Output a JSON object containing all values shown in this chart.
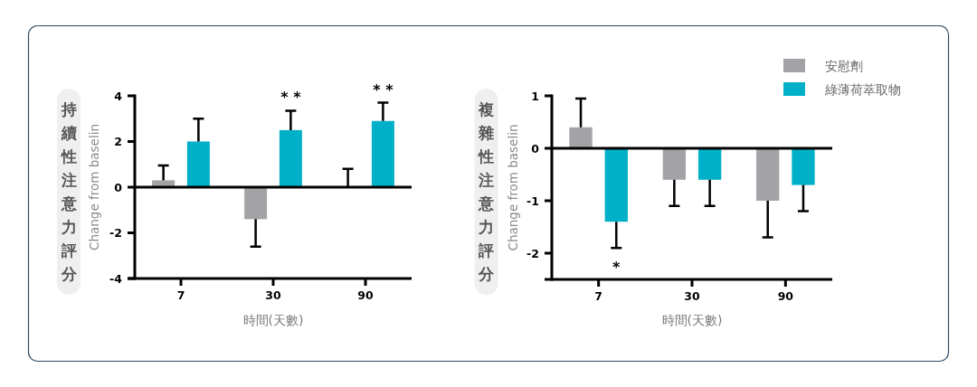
{
  "chart_data": [
    {
      "type": "bar",
      "title": "持續性注意力評分",
      "ylabel": "Change from baselin",
      "xlabel": "時間(天數)",
      "categories": [
        "7",
        "30",
        "90"
      ],
      "series": [
        {
          "color": "#a3a2a7",
          "values": [
            0.3,
            -1.4,
            0
          ],
          "errors": [
            [
              0.3,
              0.95
            ],
            [
              -2.6,
              -1.4
            ],
            [
              0,
              0.8
            ]
          ]
        },
        {
          "color": "#00b0c8",
          "values": [
            2.0,
            2.5,
            2.9
          ],
          "errors": [
            [
              2.0,
              3.0
            ],
            [
              2.5,
              3.35
            ],
            [
              2.9,
              3.7
            ]
          ]
        }
      ],
      "ylim": [
        -4,
        4
      ],
      "yticks": [
        -4,
        -2,
        0,
        2,
        4
      ],
      "ref_lines": [
        {
          "axis": "y",
          "value": 0,
          "color": "#000000"
        }
      ],
      "annotations": [
        "* *",
        "* *"
      ]
    },
    {
      "type": "bar",
      "title": "複雜性注意力評分",
      "ylabel": "Change from baselin",
      "xlabel": "時間(天數)",
      "categories": [
        "7",
        "30",
        "90"
      ],
      "series": [
        {
          "name": "安慰劑",
          "color": "#a3a2a7",
          "values": [
            0.4,
            -0.6,
            -1.0
          ],
          "errors": [
            [
              0.4,
              0.95
            ],
            [
              -1.1,
              -0.6
            ],
            [
              -1.7,
              -1.0
            ]
          ]
        },
        {
          "name": "綠薄荷萃取物",
          "color": "#00b0c8",
          "values": [
            -1.4,
            -0.6,
            -0.7
          ],
          "errors": [
            [
              -1.9,
              -1.4
            ],
            [
              -1.1,
              -0.6
            ],
            [
              -1.2,
              -0.7
            ]
          ]
        }
      ],
      "ylim": [
        -2.5,
        1
      ],
      "yticks": [
        -2,
        -1,
        0,
        1
      ],
      "ref_lines": [
        {
          "axis": "y",
          "value": 0,
          "color": "#000000"
        }
      ],
      "annotations": [
        "*"
      ],
      "legend": "top right"
    }
  ]
}
